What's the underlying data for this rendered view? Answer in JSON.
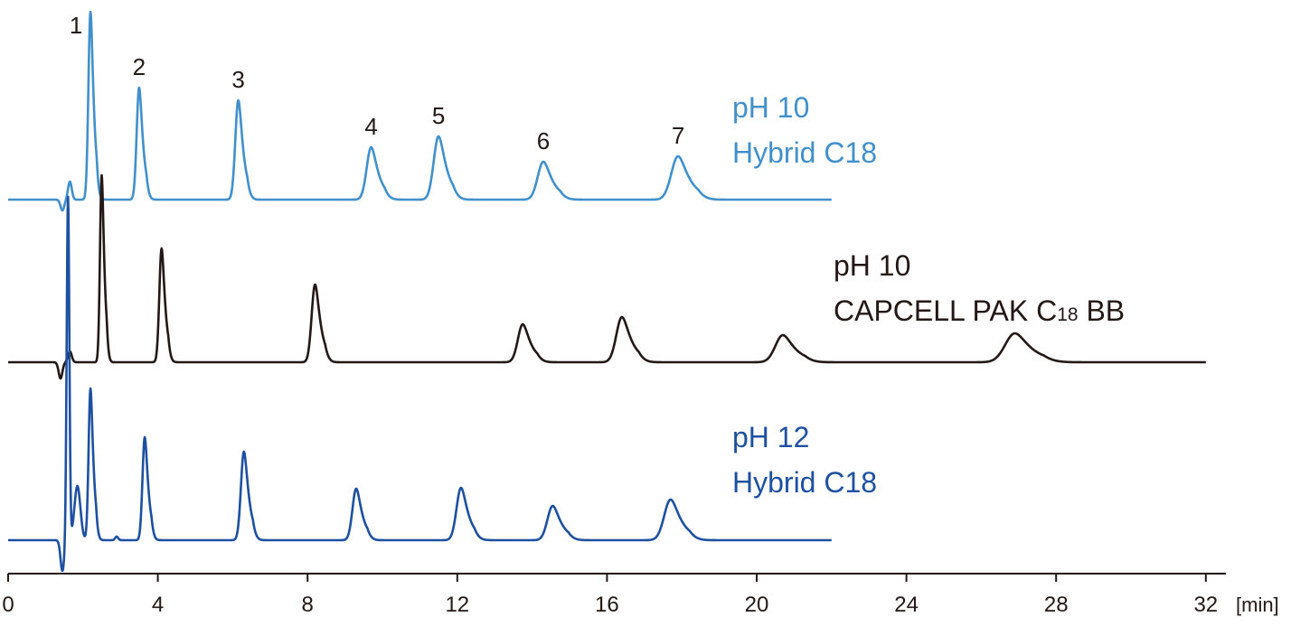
{
  "chart_data": {
    "type": "line",
    "x_unit": "[min]",
    "x_ticks": [
      0,
      4,
      8,
      12,
      16,
      20,
      24,
      28,
      32
    ],
    "xlim": [
      0,
      32.5
    ],
    "grid": false,
    "peak_numbers": [
      "1",
      "2",
      "3",
      "4",
      "5",
      "6",
      "7"
    ],
    "series": [
      {
        "key": "ph10_hybrid",
        "label_line1": "pH 10",
        "label_line2": "Hybrid C18",
        "color": "#4190cc",
        "end_time": 22,
        "peaks": [
          {
            "t": 2.2,
            "height": 208,
            "width": 0.055
          },
          {
            "t": 3.5,
            "height": 124,
            "width": 0.065
          },
          {
            "t": 6.15,
            "height": 110,
            "width": 0.08
          },
          {
            "t": 9.7,
            "height": 58,
            "width": 0.12
          },
          {
            "t": 11.5,
            "height": 70,
            "width": 0.13
          },
          {
            "t": 14.3,
            "height": 42,
            "width": 0.15
          },
          {
            "t": 17.9,
            "height": 48,
            "width": 0.18
          }
        ]
      },
      {
        "key": "ph10_capcell",
        "label_line1": "pH 10",
        "label_line2_main": "CAPCELL PAK C",
        "label_line2_sub": "18",
        "label_line2_end": " BB",
        "color": "#231815",
        "end_time": 32,
        "peaks": [
          {
            "t": 2.5,
            "height": 207,
            "width": 0.045
          },
          {
            "t": 4.1,
            "height": 126,
            "width": 0.06
          },
          {
            "t": 8.2,
            "height": 86,
            "width": 0.09
          },
          {
            "t": 13.75,
            "height": 42,
            "width": 0.13
          },
          {
            "t": 16.4,
            "height": 50,
            "width": 0.15
          },
          {
            "t": 20.7,
            "height": 30,
            "width": 0.2
          },
          {
            "t": 26.9,
            "height": 32,
            "width": 0.26
          }
        ]
      },
      {
        "key": "ph12_hybrid",
        "label_line1": "pH 12",
        "label_line2": "Hybrid C18",
        "color": "#1e50a2",
        "end_time": 22,
        "peaks": [
          {
            "t": 2.2,
            "height": 168,
            "width": 0.05
          },
          {
            "t": 3.65,
            "height": 114,
            "width": 0.06
          },
          {
            "t": 6.3,
            "height": 98,
            "width": 0.08
          },
          {
            "t": 9.3,
            "height": 57,
            "width": 0.1
          },
          {
            "t": 12.1,
            "height": 58,
            "width": 0.12
          },
          {
            "t": 14.55,
            "height": 38,
            "width": 0.14
          },
          {
            "t": 17.7,
            "height": 45,
            "width": 0.17
          }
        ]
      }
    ]
  }
}
